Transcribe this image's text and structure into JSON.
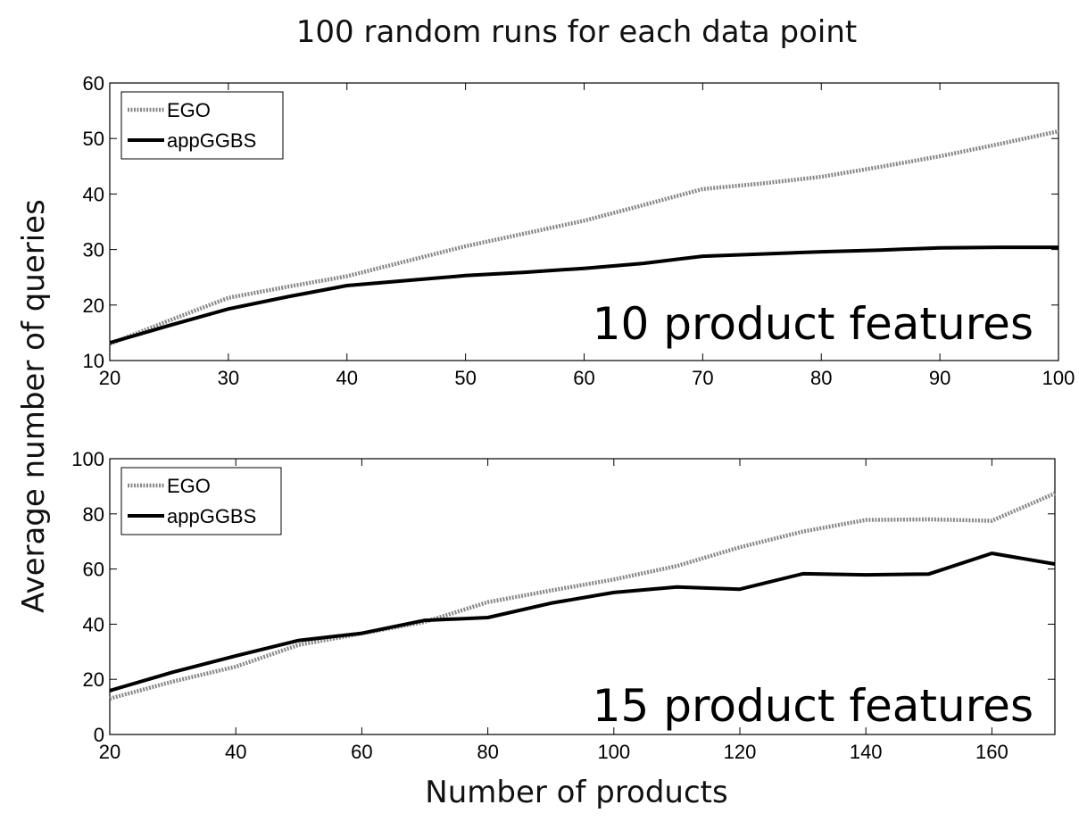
{
  "figure": {
    "title": "100 random runs for each data point",
    "ylabel": "Average number of queries",
    "xlabel": "Number of products"
  },
  "chart_data": [
    {
      "type": "line",
      "annotation": "10 product features",
      "xlim": [
        20,
        100
      ],
      "ylim": [
        10,
        60
      ],
      "xticks": [
        20,
        30,
        40,
        50,
        60,
        70,
        80,
        90,
        100
      ],
      "yticks": [
        10,
        20,
        30,
        40,
        50,
        60
      ],
      "legend": "top-left",
      "grid": false,
      "x": [
        20,
        25,
        30,
        35,
        40,
        45,
        50,
        55,
        60,
        65,
        70,
        75,
        80,
        85,
        90,
        95,
        100
      ],
      "series": [
        {
          "name": "EGO",
          "color": "#888888",
          "style": "dotted",
          "values": [
            13,
            17.2,
            21.3,
            23.3,
            25.2,
            27.9,
            30.6,
            32.9,
            35.2,
            38,
            40.9,
            41.9,
            43.1,
            44.9,
            46.8,
            49,
            51.3
          ]
        },
        {
          "name": "appGGBS",
          "color": "#000000",
          "style": "solid",
          "values": [
            13.2,
            16.3,
            19.3,
            21.5,
            23.5,
            24.4,
            25.3,
            25.9,
            26.6,
            27.5,
            28.8,
            29.2,
            29.6,
            29.9,
            30.3,
            30.4,
            30.4
          ]
        }
      ]
    },
    {
      "type": "line",
      "annotation": "15 product features",
      "xlim": [
        20,
        170
      ],
      "ylim": [
        0,
        100
      ],
      "xticks": [
        20,
        40,
        60,
        80,
        100,
        120,
        140,
        160
      ],
      "yticks": [
        0,
        20,
        40,
        60,
        80,
        100
      ],
      "legend": "top-left",
      "grid": false,
      "x": [
        20,
        30,
        40,
        50,
        60,
        70,
        80,
        90,
        100,
        110,
        120,
        130,
        140,
        150,
        160,
        170
      ],
      "series": [
        {
          "name": "EGO",
          "color": "#888888",
          "style": "dotted",
          "values": [
            13,
            19.2,
            24.6,
            32.5,
            36.6,
            40.8,
            48,
            52.2,
            56.2,
            61.1,
            67.9,
            73.6,
            77.8,
            78,
            77.5,
            87.4
          ]
        },
        {
          "name": "appGGBS",
          "color": "#000000",
          "style": "solid",
          "values": [
            15.9,
            22.6,
            28.5,
            34.1,
            36.7,
            41.4,
            42.4,
            47.6,
            51.5,
            53.5,
            52.7,
            58.3,
            57.9,
            58.2,
            65.7,
            61.8
          ]
        }
      ]
    }
  ]
}
